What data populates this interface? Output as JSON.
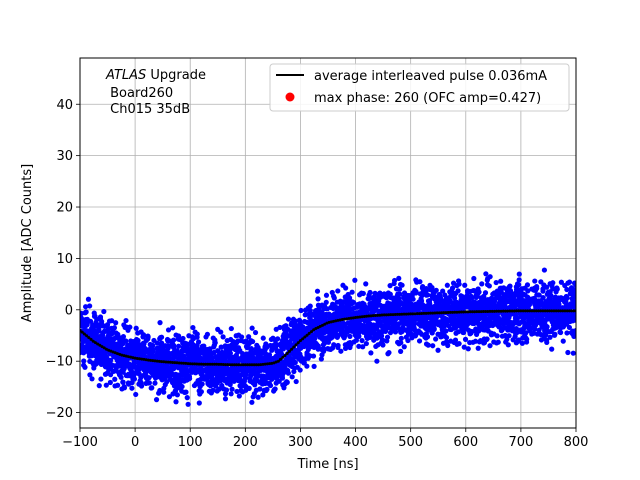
{
  "chart_data": {
    "type": "scatter",
    "title": "",
    "xlabel": "Time [ns]",
    "ylabel": "Amplitude [ADC Counts]",
    "xlim": [
      -100,
      800
    ],
    "ylim": [
      -23,
      49
    ],
    "xticks": [
      -100,
      0,
      100,
      200,
      300,
      400,
      500,
      600,
      700,
      800
    ],
    "yticks": [
      -20,
      -10,
      0,
      10,
      20,
      30,
      40
    ],
    "grid": true,
    "annotation": {
      "line1_italic": "ATLAS",
      "line1_rest": " Upgrade",
      "line2": " Board260",
      "line3": " Ch015 35dB"
    },
    "legend": {
      "placement": "top-right",
      "entries": [
        {
          "label": "average interleaved pulse 0.036mA",
          "marker": "line",
          "color": "#000000"
        },
        {
          "label": "max phase: 260 (OFC amp=0.427)",
          "marker": "dot",
          "color": "#ff0000"
        }
      ]
    },
    "series": [
      {
        "name": "average interleaved pulse 0.036mA",
        "kind": "line",
        "color": "#000000",
        "x": [
          -100,
          -75,
          -50,
          -25,
          0,
          25,
          50,
          75,
          100,
          125,
          150,
          175,
          200,
          225,
          250,
          260,
          275,
          300,
          325,
          350,
          375,
          400,
          425,
          450,
          475,
          500,
          550,
          600,
          650,
          700,
          750,
          800
        ],
        "y": [
          -4,
          -6.2,
          -7.8,
          -8.8,
          -9.4,
          -9.8,
          -10.1,
          -10.3,
          -10.5,
          -10.6,
          -10.6,
          -10.7,
          -10.7,
          -10.7,
          -10.4,
          -10,
          -8.6,
          -6,
          -3.8,
          -2.5,
          -1.9,
          -1.5,
          -1.2,
          -1,
          -0.9,
          -0.8,
          -0.6,
          -0.4,
          -0.3,
          -0.2,
          -0.2,
          -0.2
        ]
      },
      {
        "name": "samples",
        "kind": "scatter",
        "color": "#0000ff",
        "spread": 4.5,
        "x_start": -100,
        "x_end": 800,
        "y_min_observed": -19.5,
        "y_max_observed": 9.2
      }
    ]
  }
}
